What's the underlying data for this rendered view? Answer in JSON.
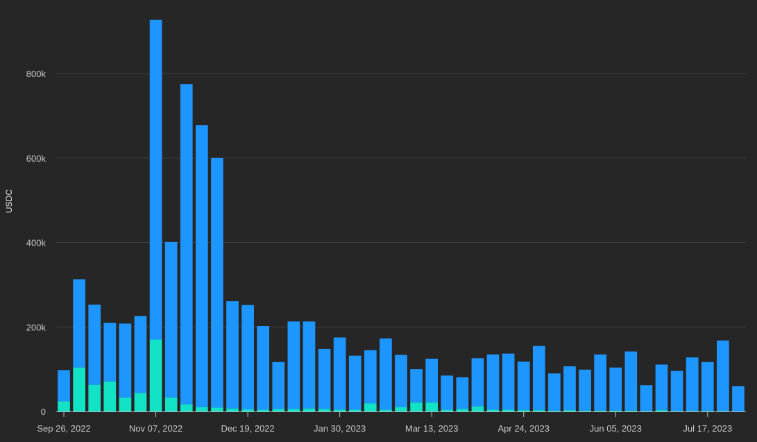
{
  "chart_data": {
    "type": "bar",
    "stacked": true,
    "ylabel": "USDC",
    "ylim": [
      0,
      950000
    ],
    "yticks": [
      0,
      200000,
      400000,
      600000,
      800000
    ],
    "ytick_labels": [
      "0",
      "200k",
      "400k",
      "600k",
      "800k"
    ],
    "grid": true,
    "xtick_labels": [
      "Sep 26, 2022",
      "Nov 07, 2022",
      "Dec 19, 2022",
      "Jan 30, 2023",
      "Mar 13, 2023",
      "Apr 24, 2023",
      "Jun 05, 2023",
      "Jul 17, 2023"
    ],
    "xtick_index": [
      0,
      6,
      12,
      18,
      24,
      30,
      36,
      42
    ],
    "colors": {
      "series_0": "#1e96ff",
      "series_1": "#12e3c6",
      "grid": "#3d3d3d",
      "axis": "#bdbdbd"
    },
    "categories": [
      "2022-09-26",
      "2022-10-03",
      "2022-10-10",
      "2022-10-17",
      "2022-10-24",
      "2022-10-31",
      "2022-11-07",
      "2022-11-14",
      "2022-11-21",
      "2022-11-28",
      "2022-12-05",
      "2022-12-12",
      "2022-12-19",
      "2022-12-26",
      "2023-01-02",
      "2023-01-09",
      "2023-01-16",
      "2023-01-23",
      "2023-01-30",
      "2023-02-06",
      "2023-02-13",
      "2023-02-20",
      "2023-02-27",
      "2023-03-06",
      "2023-03-13",
      "2023-03-20",
      "2023-03-27",
      "2023-04-03",
      "2023-04-10",
      "2023-04-17",
      "2023-04-24",
      "2023-05-01",
      "2023-05-08",
      "2023-05-15",
      "2023-05-22",
      "2023-05-29",
      "2023-06-05",
      "2023-06-12",
      "2023-06-19",
      "2023-06-26",
      "2023-07-03",
      "2023-07-10",
      "2023-07-17",
      "2023-07-24",
      "2023-07-31"
    ],
    "series": [
      {
        "values": [
          74000,
          209000,
          190000,
          139000,
          175000,
          182000,
          757000,
          368000,
          758000,
          668000,
          591000,
          254000,
          247000,
          198000,
          111000,
          207000,
          206000,
          142000,
          171000,
          128000,
          126000,
          169000,
          124000,
          79000,
          104000,
          81000,
          75000,
          114000,
          131000,
          133000,
          115000,
          152000,
          88000,
          104000,
          97000,
          133000,
          102000,
          140000,
          61000,
          108000,
          95000,
          127000,
          116000,
          167000,
          60000
        ]
      },
      {
        "values": [
          24000,
          104000,
          63000,
          71000,
          33000,
          44000,
          170000,
          33000,
          17000,
          10000,
          9000,
          7000,
          5000,
          4000,
          6000,
          6000,
          7000,
          6000,
          4000,
          4000,
          19000,
          4000,
          10000,
          21000,
          21000,
          4000,
          6000,
          12000,
          4000,
          4000,
          3000,
          3000,
          2000,
          3000,
          2000,
          2000,
          2000,
          2000,
          1000,
          3000,
          1000,
          1000,
          1000,
          1000,
          0
        ]
      }
    ]
  }
}
